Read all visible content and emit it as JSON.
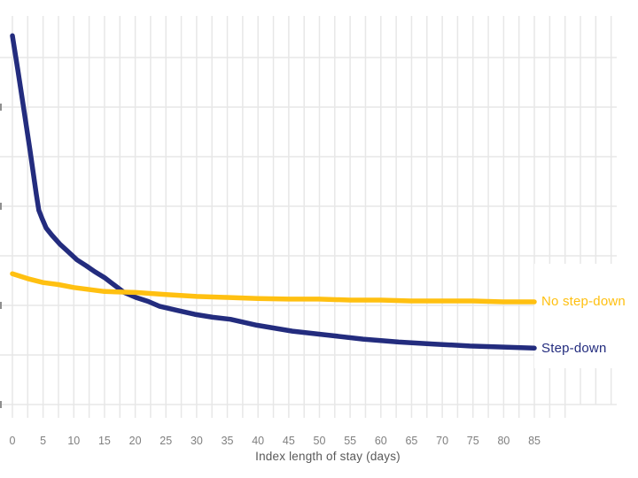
{
  "figure": {
    "background_color": "#ffffff",
    "gridline_color": "#e7e7e7",
    "tick_label_color": "#7f7f7f",
    "axis_title_color": "#595959",
    "note": "left edge of chart cropped; y-axis tick labels cut off leaving small marks at image edge"
  },
  "chart_data": {
    "type": "line",
    "title": "",
    "xlabel": "Index length of stay (days)",
    "ylabel": "",
    "y_axis_labels_visible": false,
    "x_ticks": [
      0,
      5,
      10,
      15,
      20,
      25,
      30,
      35,
      40,
      45,
      50,
      55,
      60,
      65,
      70,
      75,
      80,
      85
    ],
    "x_axis_range_days": [
      0,
      97.5
    ],
    "minor_x_grid_interval_days": 2.5,
    "horizontal_gridlines_relative_units": [
      0,
      0.5,
      1,
      1.5,
      2,
      2.5,
      3,
      3.5
    ],
    "grid": true,
    "legend_position": "end-of-line labels, right of last point",
    "series": [
      {
        "name": "Step-down",
        "color": "#232c7e",
        "points": [
          [
            0,
            3.72
          ],
          [
            0.9,
            3.37
          ],
          [
            1.9,
            2.96
          ],
          [
            2.9,
            2.55
          ],
          [
            3.9,
            2.12
          ],
          [
            4.3,
            1.96
          ],
          [
            4.8,
            1.88
          ],
          [
            5.5,
            1.78
          ],
          [
            6.4,
            1.71
          ],
          [
            7.7,
            1.62
          ],
          [
            9.1,
            1.54
          ],
          [
            10.5,
            1.46
          ],
          [
            12.0,
            1.4
          ],
          [
            13.4,
            1.34
          ],
          [
            15.0,
            1.28
          ],
          [
            16.7,
            1.2
          ],
          [
            18.2,
            1.13
          ],
          [
            20.1,
            1.08
          ],
          [
            22.1,
            1.04
          ],
          [
            24.0,
            0.99
          ],
          [
            26.8,
            0.95
          ],
          [
            29.7,
            0.91
          ],
          [
            32.6,
            0.88
          ],
          [
            35.5,
            0.86
          ],
          [
            39.8,
            0.8
          ],
          [
            45.6,
            0.74
          ],
          [
            51.4,
            0.7
          ],
          [
            57.1,
            0.66
          ],
          [
            62.9,
            0.63
          ],
          [
            68.7,
            0.61
          ],
          [
            74.5,
            0.59
          ],
          [
            79.5,
            0.58
          ],
          [
            85.0,
            0.57
          ]
        ]
      },
      {
        "name": "No step-down",
        "color": "#ffc011",
        "points": [
          [
            0,
            1.32
          ],
          [
            2.5,
            1.27
          ],
          [
            5.0,
            1.23
          ],
          [
            7.5,
            1.21
          ],
          [
            10.0,
            1.18
          ],
          [
            15.0,
            1.14
          ],
          [
            20.1,
            1.13
          ],
          [
            25.0,
            1.11
          ],
          [
            30.0,
            1.09
          ],
          [
            34.9,
            1.08
          ],
          [
            40.0,
            1.07
          ],
          [
            45.0,
            1.063
          ],
          [
            49.9,
            1.063
          ],
          [
            55.0,
            1.054
          ],
          [
            60.0,
            1.054
          ],
          [
            64.9,
            1.045
          ],
          [
            70.0,
            1.045
          ],
          [
            75.0,
            1.045
          ],
          [
            79.9,
            1.036
          ],
          [
            85.0,
            1.036
          ]
        ]
      }
    ]
  }
}
